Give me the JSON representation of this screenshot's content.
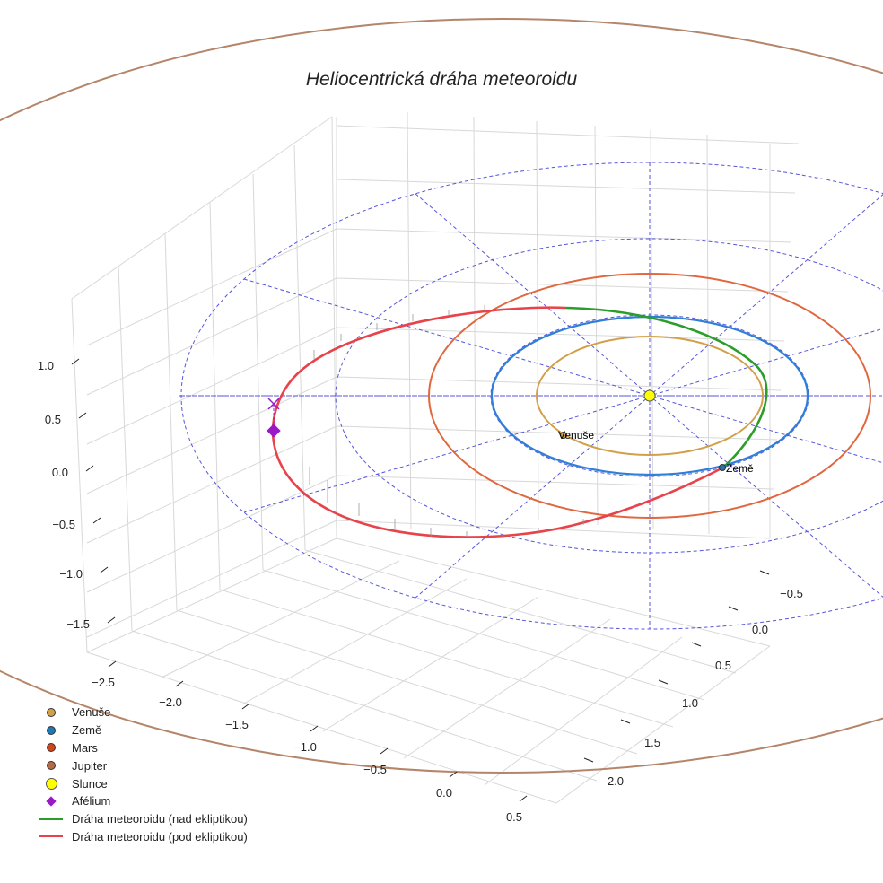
{
  "chart_data": {
    "type": "3d-line",
    "title": "Heliocentrická dráha meteoroidu",
    "x_ticks": [
      "−2.5",
      "−2.0",
      "−1.5",
      "−1.0",
      "−0.5",
      "0.0",
      "0.5"
    ],
    "y_ticks": [
      "−0.5",
      "0.0",
      "0.5",
      "1.0",
      "1.5",
      "2.0"
    ],
    "z_ticks": [
      "1.0",
      "0.5",
      "0.0",
      "−0.5",
      "−1.0",
      "−1.5"
    ],
    "xlim": [
      -2.7,
      0.7
    ],
    "ylim": [
      -0.8,
      2.3
    ],
    "zlim": [
      -1.7,
      1.3
    ],
    "grid": true,
    "sun": {
      "name": "Slunce",
      "x": 0,
      "y": 0,
      "z": 0
    },
    "planets": [
      {
        "name": "Venuše",
        "semi_major_axis_au": 0.72,
        "label": "Venuše",
        "color": "#d2a04a"
      },
      {
        "name": "Země",
        "semi_major_axis_au": 1.0,
        "label": "Země",
        "color": "#2f7fd6"
      },
      {
        "name": "Mars",
        "semi_major_axis_au": 1.52,
        "label": "",
        "color": "#e0673e"
      },
      {
        "name": "Jupiter",
        "semi_major_axis_au": 5.2,
        "label": "",
        "color": "#b5856a"
      }
    ],
    "meteoroid_orbit": {
      "semi_major_axis_au": 1.62,
      "eccentricity": 0.66,
      "aphelion_au": 2.69,
      "above_ecliptic_label": "Dráha meteoroidu (nad ekliptikou)",
      "below_ecliptic_label": "Dráha meteoroidu (pod ekliptikou)"
    },
    "aphelion": {
      "label": "Afélium",
      "x": -2.69,
      "y": 0.0,
      "z": 0.24
    },
    "colors": {
      "above": "#2a9d2a",
      "below": "#e8424a",
      "aphelion": "#9b18c8",
      "ecliptic_grid": "#5555dd",
      "sun": "#ffff00",
      "axis_grid": "#d8d8d8"
    },
    "legend": [
      {
        "label": "Venuše",
        "symbol": "dot",
        "color": "#d2a04a"
      },
      {
        "label": "Země",
        "symbol": "dot",
        "color": "#1f77b4"
      },
      {
        "label": "Mars",
        "symbol": "dot",
        "color": "#d0461b"
      },
      {
        "label": "Jupiter",
        "symbol": "dot",
        "color": "#b56a48"
      },
      {
        "label": "Slunce",
        "symbol": "sun",
        "color": "#ffff00"
      },
      {
        "label": "Afélium",
        "symbol": "diamond",
        "color": "#9b18c8"
      },
      {
        "label": "Dráha meteoroidu (nad ekliptikou)",
        "symbol": "line",
        "color": "#2a9d2a"
      },
      {
        "label": "Dráha meteoroidu (pod ekliptikou)",
        "symbol": "line",
        "color": "#e8424a"
      }
    ]
  }
}
